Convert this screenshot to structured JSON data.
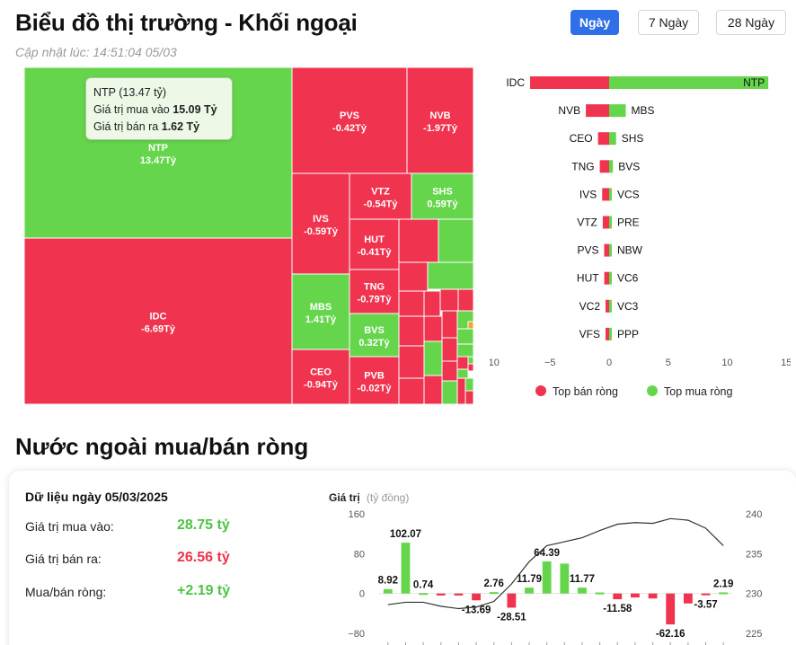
{
  "header": {
    "title": "Biểu đồ thị trường - Khối ngoại",
    "updated": "Cập nhật lúc: 14:51:04 05/03",
    "periods": [
      "Ngày",
      "7 Ngày",
      "28 Ngày"
    ],
    "active_period": "Ngày"
  },
  "treemap": {
    "tooltip": {
      "name": "NTP (13.47 tỷ)",
      "buy_label": "Giá trị mua vào",
      "buy_value": "15.09 Tỷ",
      "sell_label": "Giá trị bán ra",
      "sell_value": "1.62 Tỷ"
    },
    "tiles": [
      {
        "ticker": "NTP",
        "value": "13.47Tỷ",
        "dir": "buy"
      },
      {
        "ticker": "IDC",
        "value": "-6.69Tỷ",
        "dir": "sell"
      },
      {
        "ticker": "PVS",
        "value": "-0.42Tỷ",
        "dir": "sell"
      },
      {
        "ticker": "NVB",
        "value": "-1.97Tỷ",
        "dir": "sell"
      },
      {
        "ticker": "IVS",
        "value": "-0.59Tỷ",
        "dir": "sell"
      },
      {
        "ticker": "VTZ",
        "value": "-0.54Tỷ",
        "dir": "sell"
      },
      {
        "ticker": "SHS",
        "value": "0.59Tỷ",
        "dir": "buy"
      },
      {
        "ticker": "HUT",
        "value": "-0.41Tỷ",
        "dir": "sell"
      },
      {
        "ticker": "MBS",
        "value": "1.41Tỷ",
        "dir": "buy"
      },
      {
        "ticker": "TNG",
        "value": "-0.79Tỷ",
        "dir": "sell"
      },
      {
        "ticker": "BVS",
        "value": "0.32Tỷ",
        "dir": "buy"
      },
      {
        "ticker": "CEO",
        "value": "-0.94Tỷ",
        "dir": "sell"
      },
      {
        "ticker": "PVB",
        "value": "-0.02Tỷ",
        "dir": "sell"
      }
    ]
  },
  "chart_data": [
    {
      "type": "bar",
      "title": "",
      "orientation": "horizontal-diverging",
      "rows": [
        {
          "sell": "IDC",
          "sell_value": -6.69,
          "buy": "NTP",
          "buy_value": 13.47
        },
        {
          "sell": "NVB",
          "sell_value": -1.97,
          "buy": "MBS",
          "buy_value": 1.41
        },
        {
          "sell": "CEO",
          "sell_value": -0.94,
          "buy": "SHS",
          "buy_value": 0.59
        },
        {
          "sell": "TNG",
          "sell_value": -0.79,
          "buy": "BVS",
          "buy_value": 0.32
        },
        {
          "sell": "IVS",
          "sell_value": -0.59,
          "buy": "VCS",
          "buy_value": 0.15
        },
        {
          "sell": "VTZ",
          "sell_value": -0.54,
          "buy": "PRE",
          "buy_value": 0.1
        },
        {
          "sell": "PVS",
          "sell_value": -0.42,
          "buy": "NBW",
          "buy_value": 0.06
        },
        {
          "sell": "HUT",
          "sell_value": -0.41,
          "buy": "VC6",
          "buy_value": 0.05
        },
        {
          "sell": "VC2",
          "sell_value": -0.3,
          "buy": "VC3",
          "buy_value": 0.04
        },
        {
          "sell": "VFS",
          "sell_value": -0.25,
          "buy": "PPP",
          "buy_value": 0.03
        }
      ],
      "xlim": [
        -10,
        15
      ],
      "xticks": [
        -10,
        -5,
        0,
        5,
        10,
        15
      ],
      "legend": {
        "sell": "Top bán ròng",
        "buy": "Top mua ròng",
        "position": "bottom"
      },
      "colors": {
        "sell": "#f0344f",
        "buy": "#65d64b"
      }
    },
    {
      "type": "bar",
      "title": "",
      "ylabel": "Giá trị",
      "yunit": "(tỷ đồng)",
      "ylim": [
        -80,
        160
      ],
      "yticks": [
        -80,
        0,
        80,
        160
      ],
      "y2lim": [
        225,
        240
      ],
      "y2ticks": [
        225,
        230,
        235,
        240
      ],
      "values": [
        8.92,
        102.07,
        0.74,
        -4,
        -4,
        -13.69,
        2.76,
        -28.51,
        11.79,
        64.39,
        60,
        11.77,
        2,
        -11.58,
        -8,
        -10,
        -62.16,
        -20,
        -3.57,
        2.19
      ],
      "labels": [
        "8.92",
        "102.07",
        "0.74",
        "",
        "",
        "-13.69",
        "2.76",
        "-28.51",
        "11.79",
        "64.39",
        "",
        "11.77",
        "",
        "-11.58",
        "",
        "",
        "-62.16",
        "",
        "-3.57",
        "2.19"
      ],
      "line": [
        228.6,
        228.9,
        228.9,
        228.4,
        228.1,
        228.3,
        229.0,
        231.2,
        234.0,
        236.0,
        236.5,
        237.0,
        237.9,
        238.7,
        238.9,
        238.8,
        239.4,
        239.2,
        238.2,
        236.0
      ],
      "colors": {
        "pos": "#65d64b",
        "neg": "#f0344f",
        "line": "#333333"
      }
    }
  ],
  "net_foreign": {
    "section_title": "Nước ngoài mua/bán ròng",
    "date_label": "Dữ liệu ngày 05/03/2025",
    "buy_label": "Giá trị mua vào:",
    "buy_value": "28.75 tỷ",
    "sell_label": "Giá trị bán ra:",
    "sell_value": "26.56 tỷ",
    "net_label": "Mua/bán ròng:",
    "net_value": "+2.19 tỷ",
    "colors": {
      "buy": "#4cc442",
      "sell": "#ee3348",
      "net": "#4cc442"
    }
  }
}
